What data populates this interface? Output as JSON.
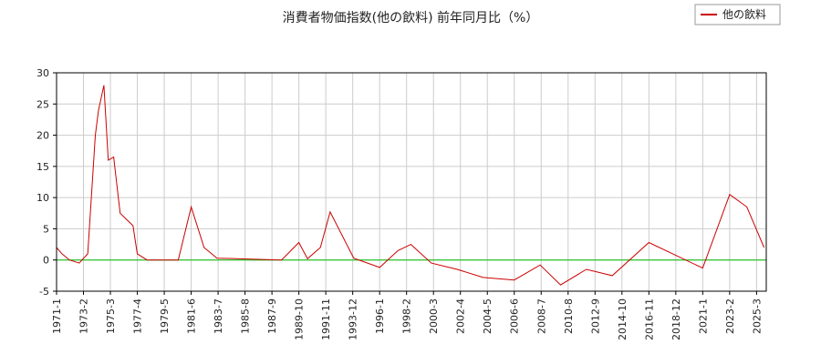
{
  "chart_data": {
    "type": "line",
    "title": "消費者物価指数(他の飲料) 前年同月比（%）",
    "xlabel": "",
    "ylabel": "",
    "ylim": [
      -5,
      30
    ],
    "yticks": [
      -5,
      0,
      5,
      10,
      15,
      20,
      25,
      30
    ],
    "xticks": [
      "1971-1",
      "1973-2",
      "1975-3",
      "1977-4",
      "1979-5",
      "1981-6",
      "1983-7",
      "1985-8",
      "1987-9",
      "1989-10",
      "1991-11",
      "1993-12",
      "1996-1",
      "1998-2",
      "2000-3",
      "2002-4",
      "2004-5",
      "2006-6",
      "2008-7",
      "2010-8",
      "2012-9",
      "2014-10",
      "2016-11",
      "2018-12",
      "2021-1",
      "2023-2",
      "2025-3"
    ],
    "grid": true,
    "legend_position": "top-right",
    "colors": {
      "series": "#cc0000",
      "zero_line": "#00bb00",
      "grid": "#cccccc"
    },
    "series": [
      {
        "name": "他の飲料",
        "x": [
          "1971-1",
          "1971-6",
          "1972-1",
          "1972-10",
          "1973-6",
          "1974-1",
          "1974-4",
          "1974-9",
          "1975-1",
          "1975-6",
          "1975-12",
          "1976-6",
          "1976-12",
          "1977-4",
          "1978-1",
          "1980-6",
          "1981-6",
          "1982-6",
          "1983-6",
          "1988-6",
          "1989-10",
          "1990-6",
          "1991-6",
          "1992-3",
          "1994-1",
          "1996-1",
          "1997-6",
          "1998-6",
          "2000-1",
          "2002-1",
          "2004-1",
          "2006-6",
          "2008-6",
          "2010-1",
          "2012-1",
          "2014-1",
          "2016-11",
          "2021-1",
          "2023-2",
          "2024-6",
          "2025-10"
        ],
        "values": [
          2,
          1,
          0,
          -0.5,
          1,
          20,
          24,
          28,
          16,
          16.5,
          7.5,
          6.5,
          5.5,
          1,
          0,
          0,
          8.5,
          2,
          0.3,
          0,
          2.8,
          0.2,
          2,
          7.7,
          0.3,
          -1.2,
          1.5,
          2.5,
          -0.5,
          -1.5,
          -2.8,
          -3.2,
          -0.8,
          -4,
          -1.5,
          -2.5,
          2.8,
          -1.3,
          10.5,
          8.5,
          2
        ]
      }
    ]
  }
}
